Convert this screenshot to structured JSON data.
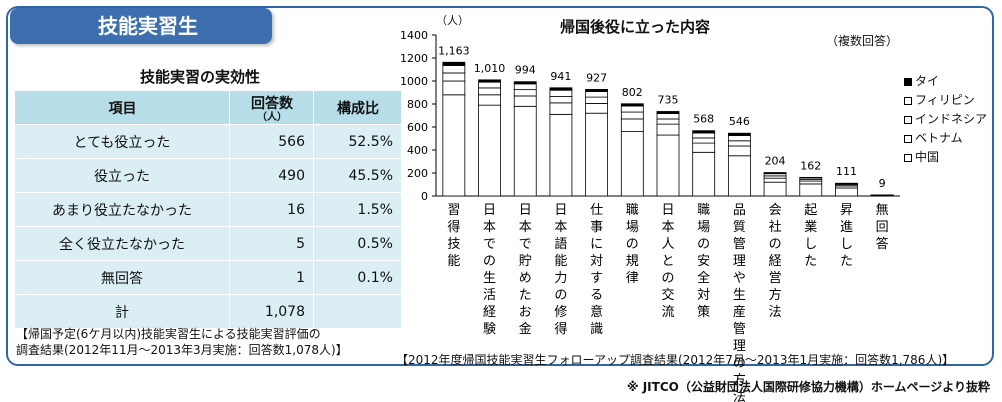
{
  "header": {
    "title": "技能実習生"
  },
  "effect_table": {
    "title": "技能実習の実効性",
    "headers": [
      "項目",
      "回答数",
      "構成比"
    ],
    "count_unit": "（人）",
    "rows": [
      [
        "とても役立った",
        "566",
        "52.5%"
      ],
      [
        "役立った",
        "490",
        "45.5%"
      ],
      [
        "あまり役立たなかった",
        "16",
        "1.5%"
      ],
      [
        "全く役立たなかった",
        "5",
        "0.5%"
      ],
      [
        "無回答",
        "1",
        "0.1%"
      ],
      [
        "計",
        "1,078",
        ""
      ]
    ]
  },
  "notes": {
    "left_line1": "【帰国予定(6ケ月以内)技能実習生による技能実習評価の",
    "left_line2": "調査結果(2012年11月～2013年3月実施：回答数1,078人)】",
    "right": "【2012年度帰国技能実習生フォローアップ調査結果(2012年7月～2013年1月実施：回答数1,786人)】",
    "credit": "※ JITCO（公益財団法人国際研修協力機構）ホームページより抜粋"
  },
  "chart_data": {
    "type": "bar",
    "title": "帰国後役に立った内容",
    "subtitle": "（複数回答）",
    "y_unit": "（人）",
    "ylim": [
      0,
      1400
    ],
    "yticks": [
      0,
      200,
      400,
      600,
      800,
      1000,
      1200,
      1400
    ],
    "grid": false,
    "legend_position": "right",
    "categories": [
      "習得技能",
      "日本での生活経験",
      "日本で貯めたお金",
      "日本語能力の修得",
      "仕事に対する意識",
      "職場の規律",
      "日本人との交流",
      "職場の安全対策",
      "品質管理や生産管理の方法",
      "会社の経営方法",
      "起業した",
      "昇進した",
      "無回答"
    ],
    "total_labels": [
      "1,163",
      "1,010",
      "994",
      "941",
      "927",
      "802",
      "735",
      "568",
      "546",
      "204",
      "162",
      "111",
      "9"
    ],
    "series": [
      {
        "name": "中国",
        "values": [
          880,
          790,
          780,
          710,
          720,
          560,
          530,
          380,
          350,
          120,
          105,
          70,
          6
        ]
      },
      {
        "name": "ベトナム",
        "values": [
          120,
          90,
          90,
          100,
          85,
          110,
          95,
          80,
          85,
          35,
          25,
          18,
          1
        ]
      },
      {
        "name": "インドネシア",
        "values": [
          70,
          60,
          55,
          55,
          55,
          60,
          45,
          45,
          45,
          20,
          15,
          10,
          1
        ]
      },
      {
        "name": "フィリピン",
        "values": [
          65,
          50,
          50,
          55,
          48,
          52,
          47,
          43,
          46,
          19,
          12,
          8,
          1
        ]
      },
      {
        "name": "タイ",
        "values": [
          28,
          20,
          19,
          21,
          19,
          20,
          18,
          20,
          20,
          10,
          5,
          5,
          0
        ]
      }
    ],
    "colors": {
      "filled": "#000000",
      "open": "#ffffff",
      "stroke": "#000000"
    }
  }
}
